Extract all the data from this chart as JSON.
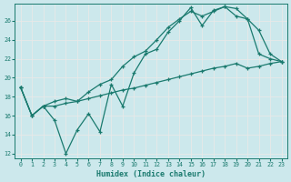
{
  "xlabel": "Humidex (Indice chaleur)",
  "xlim": [
    -0.5,
    23.5
  ],
  "ylim": [
    11.5,
    27.8
  ],
  "xticks": [
    0,
    1,
    2,
    3,
    4,
    5,
    6,
    7,
    8,
    9,
    10,
    11,
    12,
    13,
    14,
    15,
    16,
    17,
    18,
    19,
    20,
    21,
    22,
    23
  ],
  "yticks": [
    12,
    14,
    16,
    18,
    20,
    22,
    24,
    26
  ],
  "bg_color": "#cce8ec",
  "line_color": "#1a7a6e",
  "grid_color": "#f0f0f0",
  "line1_y": [
    19.0,
    16.0,
    17.0,
    15.5,
    12.0,
    14.5,
    16.2,
    14.3,
    19.3,
    17.0,
    20.5,
    22.5,
    23.0,
    24.8,
    26.0,
    27.4,
    25.5,
    27.1,
    27.5,
    27.3,
    26.2,
    22.5,
    22.0,
    21.7
  ],
  "line2_y": [
    19.0,
    16.0,
    17.0,
    17.5,
    17.8,
    17.5,
    18.5,
    19.3,
    19.8,
    21.2,
    22.2,
    22.8,
    24.0,
    25.3,
    26.2,
    27.0,
    26.5,
    27.0,
    27.5,
    26.5,
    26.2,
    25.0,
    22.5,
    21.7
  ],
  "line3_y": [
    19.0,
    16.0,
    17.0,
    17.0,
    17.3,
    17.5,
    17.8,
    18.1,
    18.4,
    18.7,
    18.9,
    19.2,
    19.5,
    19.8,
    20.1,
    20.4,
    20.7,
    21.0,
    21.2,
    21.5,
    21.0,
    21.2,
    21.5,
    21.7
  ]
}
